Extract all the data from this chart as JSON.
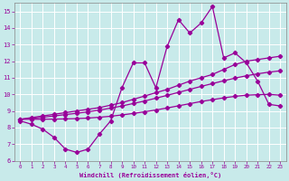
{
  "x": [
    0,
    1,
    2,
    3,
    4,
    5,
    6,
    7,
    8,
    9,
    10,
    11,
    12,
    13,
    14,
    15,
    16,
    17,
    18,
    19,
    20,
    21,
    22,
    23
  ],
  "line_temp": [
    8.4,
    8.2,
    7.9,
    7.4,
    6.7,
    6.5,
    6.7,
    7.6,
    8.4,
    10.4,
    11.9,
    11.9,
    10.4,
    12.9,
    14.5,
    13.7,
    14.3,
    15.3,
    12.2,
    12.5,
    11.9,
    10.8,
    9.4,
    9.3
  ],
  "line_trend1": [
    8.5,
    8.6,
    8.7,
    8.8,
    8.9,
    9.0,
    9.1,
    9.2,
    9.35,
    9.5,
    9.7,
    9.9,
    10.1,
    10.3,
    10.55,
    10.8,
    11.0,
    11.2,
    11.5,
    11.8,
    12.0,
    12.1,
    12.2,
    12.3
  ],
  "line_trend2": [
    8.5,
    8.55,
    8.62,
    8.7,
    8.78,
    8.86,
    8.95,
    9.05,
    9.17,
    9.3,
    9.45,
    9.6,
    9.77,
    9.94,
    10.12,
    10.3,
    10.48,
    10.65,
    10.82,
    10.98,
    11.12,
    11.24,
    11.34,
    11.42
  ],
  "line_trend3": [
    8.5,
    8.5,
    8.5,
    8.51,
    8.52,
    8.54,
    8.57,
    8.62,
    8.68,
    8.76,
    8.85,
    8.95,
    9.06,
    9.18,
    9.31,
    9.44,
    9.57,
    9.68,
    9.79,
    9.88,
    9.95,
    9.98,
    10.0,
    9.95
  ],
  "color": "#990099",
  "bg_color": "#c8eaea",
  "grid_color": "#b0d8d8",
  "ylim": [
    6,
    15.5
  ],
  "xlim": [
    -0.5,
    23.5
  ],
  "yticks": [
    6,
    7,
    8,
    9,
    10,
    11,
    12,
    13,
    14,
    15
  ],
  "xticks": [
    0,
    1,
    2,
    3,
    4,
    5,
    6,
    7,
    8,
    9,
    10,
    11,
    12,
    13,
    14,
    15,
    16,
    17,
    18,
    19,
    20,
    21,
    22,
    23
  ],
  "xlabel": "Windchill (Refroidissement éolien,°C)",
  "figsize": [
    3.2,
    2.0
  ],
  "dpi": 100
}
